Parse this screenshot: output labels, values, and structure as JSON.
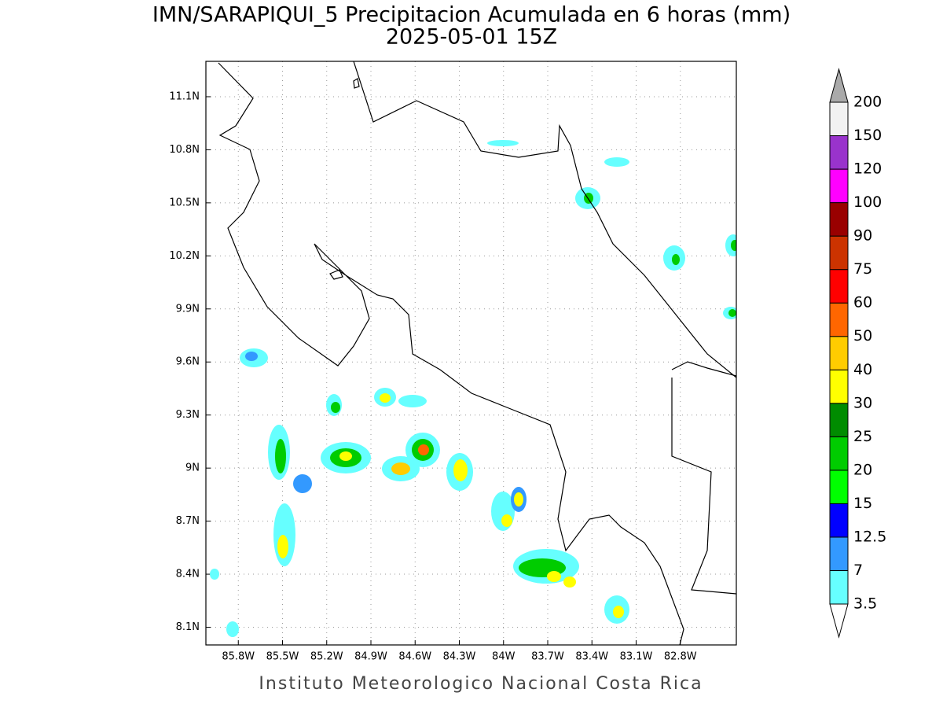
{
  "title": "IMN/SARAPIQUI_5 Precipitacion Acumulada en 6 horas (mm)",
  "subtitle": "2025-05-01 15Z",
  "footer": "Instituto Meteorologico Nacional Costa Rica",
  "map": {
    "lon_range": [
      -86.02,
      -82.42
    ],
    "lat_range": [
      8.0,
      11.3
    ],
    "lon_ticks": [
      {
        "value": -85.8,
        "label": "85.8W"
      },
      {
        "value": -85.5,
        "label": "85.5W"
      },
      {
        "value": -85.2,
        "label": "85.2W"
      },
      {
        "value": -84.9,
        "label": "84.9W"
      },
      {
        "value": -84.6,
        "label": "84.6W"
      },
      {
        "value": -84.3,
        "label": "84.3W"
      },
      {
        "value": -84,
        "label": "84W"
      },
      {
        "value": -83.7,
        "label": "83.7W"
      },
      {
        "value": -83.4,
        "label": "83.4W"
      },
      {
        "value": -83.1,
        "label": "83.1W"
      },
      {
        "value": -82.8,
        "label": "82.8W"
      }
    ],
    "lat_ticks": [
      {
        "value": 8.1,
        "label": "8.1N"
      },
      {
        "value": 8.4,
        "label": "8.4N"
      },
      {
        "value": 8.7,
        "label": "8.7N"
      },
      {
        "value": 9,
        "label": "9N"
      },
      {
        "value": 9.3,
        "label": "9.3N"
      },
      {
        "value": 9.6,
        "label": "9.6N"
      },
      {
        "value": 9.9,
        "label": "9.9N"
      },
      {
        "value": 10.2,
        "label": "10.2N"
      },
      {
        "value": 10.5,
        "label": "10.5N"
      },
      {
        "value": 10.8,
        "label": "10.8N"
      },
      {
        "value": 11.1,
        "label": "11.1N"
      }
    ]
  },
  "colorbar": {
    "levels": [
      3.5,
      7,
      12.5,
      15,
      20,
      25,
      30,
      40,
      50,
      60,
      75,
      90,
      100,
      120,
      150,
      200
    ],
    "colors": [
      "#66ffff",
      "#3399ff",
      "#0000ff",
      "#00ff00",
      "#00cc00",
      "#008c00",
      "#ffff00",
      "#ffcc00",
      "#ff6600",
      "#ff0000",
      "#cc3300",
      "#990000",
      "#ff00ff",
      "#9933cc",
      "#f2f2f2"
    ],
    "under_color": "#ffffff",
    "over_color": "#aaaaaa"
  }
}
